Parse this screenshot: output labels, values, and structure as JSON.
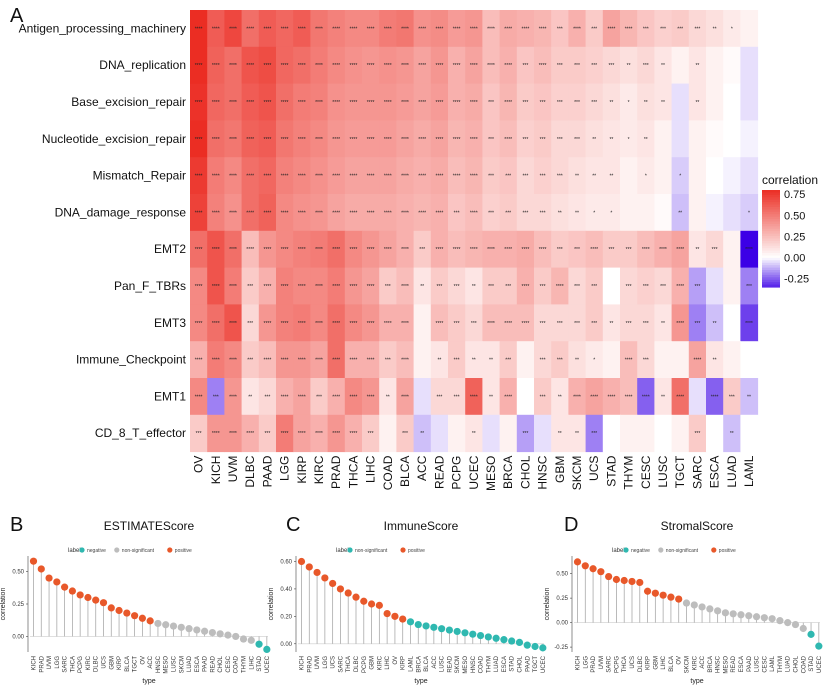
{
  "panel_labels": {
    "a": "A",
    "b": "B",
    "c": "C",
    "d": "D"
  },
  "chart_data": [
    {
      "type": "heatmap",
      "panel": "A",
      "rows": [
        "Antigen_processing_machinery",
        "DNA_replication",
        "Base_excision_repair",
        "Nucleotide_excision_repair",
        "Mismatch_Repair",
        "DNA_damage_response",
        "EMT2",
        "Pan_F_TBRs",
        "EMT3",
        "Immune_Checkpoint",
        "EMT1",
        "CD_8_T_effector"
      ],
      "columns": [
        "OV",
        "KICH",
        "UVM",
        "DLBC",
        "PAAD",
        "LGG",
        "KIRP",
        "KIRC",
        "PRAD",
        "THCA",
        "LIHC",
        "COAD",
        "BLCA",
        "ACC",
        "READ",
        "PCPG",
        "UCEC",
        "MESO",
        "BRCA",
        "CHOL",
        "HNSC",
        "GBM",
        "SKCM",
        "UCS",
        "STAD",
        "THYM",
        "CESC",
        "LUSC",
        "TGCT",
        "SARC",
        "ESCA",
        "LUAD",
        "LAML"
      ],
      "colorbar": {
        "title": "correlation",
        "ticks": [
          "0.75",
          "0.50",
          "0.25",
          "0.00",
          "-0.25"
        ],
        "range": [
          -0.35,
          0.8
        ]
      },
      "row_profiles": [
        [
          0.8,
          0.62,
          0.7,
          0.55,
          0.62,
          0.58,
          0.62,
          0.52,
          0.48,
          0.45,
          0.45,
          0.5,
          0.52,
          0.42,
          0.44,
          0.38,
          0.4,
          0.25,
          0.32,
          0.3,
          0.28,
          0.22,
          0.3,
          0.2,
          0.35,
          0.28,
          0.22,
          0.18,
          0.2,
          0.15,
          0.12,
          0.08,
          0.05
        ],
        [
          0.8,
          0.6,
          0.55,
          0.65,
          0.68,
          0.58,
          0.55,
          0.5,
          0.45,
          0.42,
          0.4,
          0.42,
          0.4,
          0.35,
          0.4,
          0.3,
          0.35,
          0.25,
          0.3,
          0.22,
          0.25,
          0.2,
          0.2,
          0.18,
          0.15,
          0.12,
          0.15,
          0.1,
          0.05,
          0.1,
          0.05,
          0.02,
          -0.05
        ],
        [
          0.78,
          0.58,
          0.55,
          0.62,
          0.65,
          0.55,
          0.5,
          0.48,
          0.42,
          0.4,
          0.4,
          0.4,
          0.38,
          0.35,
          0.38,
          0.3,
          0.32,
          0.22,
          0.28,
          0.2,
          0.22,
          0.18,
          0.18,
          0.15,
          0.12,
          0.08,
          0.12,
          0.1,
          -0.05,
          0.1,
          0.05,
          0.0,
          -0.05
        ],
        [
          0.8,
          0.55,
          0.52,
          0.6,
          0.62,
          0.52,
          0.48,
          0.45,
          0.4,
          0.38,
          0.38,
          0.38,
          0.35,
          0.32,
          0.35,
          0.28,
          0.3,
          0.22,
          0.25,
          0.18,
          0.2,
          0.15,
          0.15,
          0.12,
          0.1,
          0.08,
          0.1,
          0.05,
          -0.05,
          0.05,
          0.02,
          0.0,
          -0.02
        ],
        [
          0.75,
          0.5,
          0.45,
          0.55,
          0.58,
          0.48,
          0.45,
          0.42,
          0.38,
          0.35,
          0.35,
          0.35,
          0.32,
          0.3,
          0.32,
          0.25,
          0.28,
          0.2,
          0.22,
          0.15,
          0.18,
          0.15,
          0.12,
          0.1,
          0.1,
          0.05,
          0.08,
          0.05,
          -0.08,
          0.05,
          0.0,
          -0.02,
          -0.05
        ],
        [
          0.72,
          0.48,
          0.42,
          0.55,
          0.6,
          0.45,
          0.42,
          0.4,
          0.35,
          0.32,
          0.32,
          0.32,
          0.3,
          0.28,
          0.3,
          0.22,
          0.25,
          0.18,
          0.2,
          0.15,
          0.15,
          0.12,
          0.1,
          0.08,
          0.08,
          0.05,
          0.05,
          0.02,
          -0.1,
          0.05,
          -0.02,
          -0.05,
          -0.08
        ],
        [
          0.55,
          0.65,
          0.55,
          0.25,
          0.4,
          0.45,
          0.48,
          0.5,
          0.55,
          0.45,
          0.4,
          0.35,
          0.3,
          0.2,
          0.3,
          0.25,
          0.28,
          0.3,
          0.3,
          0.32,
          0.25,
          0.2,
          0.22,
          0.25,
          0.2,
          0.2,
          0.25,
          0.3,
          0.35,
          0.1,
          0.15,
          0.05,
          -0.45
        ],
        [
          0.45,
          0.65,
          0.5,
          0.2,
          0.3,
          0.48,
          0.45,
          0.45,
          0.5,
          0.4,
          0.35,
          0.2,
          0.25,
          0.1,
          0.2,
          0.15,
          0.1,
          0.2,
          0.2,
          0.3,
          0.2,
          0.28,
          0.15,
          0.2,
          0.0,
          0.15,
          0.18,
          0.15,
          0.3,
          -0.15,
          -0.05,
          0.05,
          -0.2
        ],
        [
          0.45,
          0.55,
          0.65,
          0.15,
          0.4,
          0.48,
          0.5,
          0.45,
          0.55,
          0.45,
          0.4,
          0.3,
          0.3,
          0.05,
          0.25,
          0.2,
          0.15,
          0.25,
          0.25,
          0.25,
          0.15,
          0.15,
          0.15,
          0.2,
          0.1,
          0.15,
          0.15,
          0.1,
          0.4,
          -0.2,
          -0.1,
          0.0,
          -0.3
        ],
        [
          0.3,
          0.5,
          0.45,
          0.2,
          0.25,
          0.4,
          0.4,
          0.35,
          0.55,
          0.3,
          0.3,
          0.2,
          0.25,
          0.05,
          0.1,
          0.2,
          0.1,
          0.1,
          0.2,
          0.05,
          0.15,
          0.2,
          0.12,
          0.08,
          0.05,
          0.25,
          0.15,
          0.05,
          0.05,
          0.35,
          0.1,
          0.05,
          0.0
        ],
        [
          0.45,
          -0.2,
          0.4,
          0.1,
          0.15,
          0.3,
          0.35,
          0.2,
          0.3,
          0.45,
          0.4,
          0.1,
          0.35,
          -0.05,
          0.15,
          0.15,
          0.6,
          0.1,
          0.3,
          0.0,
          0.2,
          0.1,
          0.3,
          0.35,
          0.3,
          0.25,
          -0.25,
          0.1,
          0.55,
          -0.05,
          -0.25,
          0.2,
          -0.1
        ],
        [
          0.2,
          0.4,
          0.4,
          0.3,
          0.2,
          0.5,
          0.35,
          0.3,
          0.4,
          0.3,
          0.2,
          0.05,
          0.2,
          -0.1,
          -0.05,
          0.05,
          0.1,
          -0.05,
          0.05,
          -0.15,
          -0.05,
          0.1,
          0.1,
          -0.2,
          0.0,
          0.05,
          0.05,
          0.0,
          0.05,
          0.2,
          0.0,
          -0.1,
          0.0
        ]
      ]
    },
    {
      "type": "lollipop",
      "panel": "B",
      "title": "ESTIMATEScore",
      "xlabel": "type",
      "ylabel": "correlation",
      "legend_title": "label",
      "legend_entries": [
        "negative",
        "non-significant",
        "positive"
      ],
      "colors": {
        "negative": "#2fb8b0",
        "non-significant": "#bdbdbd",
        "positive": "#e8582a"
      },
      "yticks": [
        0.0,
        0.25,
        0.5
      ],
      "ylim": [
        -0.12,
        0.62
      ],
      "categories": [
        "KICH",
        "PRAD",
        "UVM",
        "LGG",
        "SARC",
        "THCA",
        "PCPG",
        "KIRC",
        "DLBC",
        "UCS",
        "GBM",
        "KIRP",
        "BLCA",
        "TGCT",
        "OV",
        "ACC",
        "HNSC",
        "MESO",
        "LUSC",
        "SKCM",
        "LUAD",
        "ESCA",
        "PAAD",
        "READ",
        "CHOL",
        "CESC",
        "COAD",
        "THYM",
        "LIHC",
        "STAD",
        "UCEC"
      ],
      "values": [
        0.58,
        0.52,
        0.45,
        0.42,
        0.38,
        0.35,
        0.32,
        0.3,
        0.28,
        0.26,
        0.22,
        0.2,
        0.18,
        0.16,
        0.14,
        0.12,
        0.1,
        0.09,
        0.08,
        0.07,
        0.06,
        0.05,
        0.04,
        0.03,
        0.02,
        0.01,
        0.0,
        -0.02,
        -0.03,
        -0.06,
        -0.1
      ],
      "labels": [
        "positive",
        "positive",
        "positive",
        "positive",
        "positive",
        "positive",
        "positive",
        "positive",
        "positive",
        "positive",
        "positive",
        "positive",
        "positive",
        "positive",
        "positive",
        "positive",
        "non-significant",
        "non-significant",
        "non-significant",
        "non-significant",
        "non-significant",
        "non-significant",
        "non-significant",
        "non-significant",
        "non-significant",
        "non-significant",
        "non-significant",
        "non-significant",
        "non-significant",
        "negative",
        "negative"
      ]
    },
    {
      "type": "lollipop",
      "panel": "C",
      "title": "ImmuneScore",
      "xlabel": "type",
      "ylabel": "correlation",
      "legend_title": "label",
      "legend_entries": [
        "non-significant",
        "positive"
      ],
      "colors": {
        "non-significant": "#2fb8b0",
        "positive": "#e8582a"
      },
      "yticks": [
        0.0,
        0.2,
        0.4,
        0.6
      ],
      "ylim": [
        -0.06,
        0.64
      ],
      "categories": [
        "KICH",
        "PRAD",
        "UVM",
        "LGG",
        "UCS",
        "SARC",
        "THCA",
        "DLBC",
        "PCPG",
        "GBM",
        "KIRC",
        "LIHC",
        "OV",
        "KIRP",
        "LAML",
        "BRCA",
        "BLCA",
        "ACC",
        "LUSC",
        "READ",
        "SKCM",
        "MESO",
        "HNSC",
        "COAD",
        "THYM",
        "LUAD",
        "ESCA",
        "STAD",
        "CHOL",
        "PAAD",
        "TGCT",
        "UCEC"
      ],
      "values": [
        0.6,
        0.56,
        0.52,
        0.48,
        0.44,
        0.4,
        0.37,
        0.34,
        0.31,
        0.29,
        0.28,
        0.22,
        0.2,
        0.18,
        0.16,
        0.14,
        0.13,
        0.12,
        0.11,
        0.1,
        0.09,
        0.08,
        0.07,
        0.06,
        0.05,
        0.04,
        0.03,
        0.02,
        0.01,
        -0.01,
        -0.02,
        -0.03
      ],
      "labels": [
        "positive",
        "positive",
        "positive",
        "positive",
        "positive",
        "positive",
        "positive",
        "positive",
        "positive",
        "positive",
        "positive",
        "positive",
        "positive",
        "positive",
        "non-significant",
        "non-significant",
        "non-significant",
        "non-significant",
        "non-significant",
        "non-significant",
        "non-significant",
        "non-significant",
        "non-significant",
        "non-significant",
        "non-significant",
        "non-significant",
        "non-significant",
        "non-significant",
        "non-significant",
        "non-significant",
        "non-significant",
        "non-significant"
      ]
    },
    {
      "type": "lollipop",
      "panel": "D",
      "title": "StromalScore",
      "xlabel": "type",
      "ylabel": "correlation",
      "legend_title": "label",
      "legend_entries": [
        "negative",
        "non-significant",
        "positive"
      ],
      "colors": {
        "negative": "#2fb8b0",
        "non-significant": "#bdbdbd",
        "positive": "#e8582a"
      },
      "yticks": [
        -0.25,
        0.0,
        0.25,
        0.5
      ],
      "ylim": [
        -0.3,
        0.68
      ],
      "categories": [
        "KICH",
        "LGG",
        "PRAD",
        "UVM",
        "SARC",
        "PCPG",
        "THCA",
        "UCS",
        "DLBC",
        "KIRP",
        "GBM",
        "LIHC",
        "BLCA",
        "OV",
        "SKCM",
        "KIRC",
        "ACC",
        "BRCA",
        "HNSC",
        "MESO",
        "READ",
        "ESCA",
        "PAAD",
        "LUSC",
        "CESC",
        "LAML",
        "THYM",
        "LUAD",
        "CHOL",
        "COAD",
        "STAD",
        "UCEC"
      ],
      "values": [
        0.62,
        0.58,
        0.55,
        0.52,
        0.47,
        0.44,
        0.43,
        0.42,
        0.41,
        0.32,
        0.3,
        0.28,
        0.26,
        0.24,
        0.2,
        0.18,
        0.16,
        0.14,
        0.12,
        0.1,
        0.09,
        0.08,
        0.07,
        0.06,
        0.05,
        0.04,
        0.02,
        0.0,
        -0.02,
        -0.06,
        -0.12,
        -0.24
      ],
      "labels": [
        "positive",
        "positive",
        "positive",
        "positive",
        "positive",
        "positive",
        "positive",
        "positive",
        "positive",
        "positive",
        "positive",
        "positive",
        "positive",
        "positive",
        "non-significant",
        "non-significant",
        "non-significant",
        "non-significant",
        "non-significant",
        "non-significant",
        "non-significant",
        "non-significant",
        "non-significant",
        "non-significant",
        "non-significant",
        "non-significant",
        "non-significant",
        "non-significant",
        "non-significant",
        "non-significant",
        "negative",
        "negative"
      ]
    }
  ]
}
